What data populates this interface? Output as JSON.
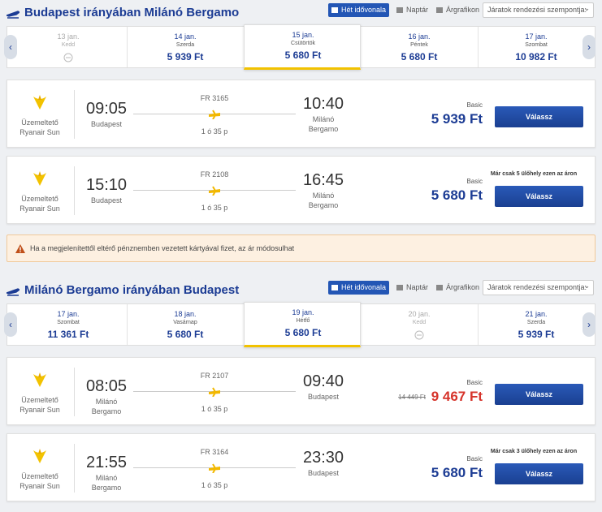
{
  "sections": [
    {
      "title": "Budapest irányában Milánó Bergamo",
      "tabs": [
        "Hét idővonala",
        "Naptár",
        "Árgrafikon"
      ],
      "sort": "Járatok rendezési szempontja:",
      "days": [
        {
          "date": "13 jan.",
          "weekday": "Kedd"
        },
        {
          "date": "14 jan.",
          "weekday": "Szerda",
          "price": "5 939 Ft"
        },
        {
          "date": "15 jan.",
          "weekday": "Csütörtök",
          "price": "5 680 Ft",
          "selected": true
        },
        {
          "date": "16 jan.",
          "weekday": "Péntek",
          "price": "5 680 Ft"
        },
        {
          "date": "17 jan.",
          "weekday": "Szombat",
          "price": "10 982 Ft"
        }
      ],
      "flights": [
        {
          "operator": "Üzemeltető",
          "airline": "Ryanair Sun",
          "dep_time": "09:05",
          "dep_city": "Budapest",
          "flight": "FR 3165",
          "duration": "1 ó 35 p",
          "arr_time": "10:40",
          "arr_city": "Milánó Bergamo",
          "fare": "Basic",
          "price": "5 939 Ft",
          "button": "Válassz"
        },
        {
          "operator": "Üzemeltető",
          "airline": "Ryanair Sun",
          "dep_time": "15:10",
          "dep_city": "Budapest",
          "flight": "FR 2108",
          "duration": "1 ó 35 p",
          "arr_time": "16:45",
          "arr_city": "Milánó Bergamo",
          "fare": "Basic",
          "price": "5 680 Ft",
          "note": "Már csak 5 ülőhely ezen az áron",
          "button": "Válassz"
        }
      ]
    },
    {
      "title": "Milánó Bergamo irányában Budapest",
      "tabs": [
        "Hét idővonala",
        "Naptár",
        "Árgrafikon"
      ],
      "sort": "Járatok rendezési szempontja:",
      "days": [
        {
          "date": "17 jan.",
          "weekday": "Szombat",
          "price": "11 361 Ft"
        },
        {
          "date": "18 jan.",
          "weekday": "Vasárnap",
          "price": "5 680 Ft"
        },
        {
          "date": "19 jan.",
          "weekday": "Hétfő",
          "price": "5 680 Ft",
          "selected": true
        },
        {
          "date": "20 jan.",
          "weekday": "Kedd"
        },
        {
          "date": "21 jan.",
          "weekday": "Szerda",
          "price": "5 939 Ft"
        }
      ],
      "flights": [
        {
          "operator": "Üzemeltető",
          "airline": "Ryanair Sun",
          "dep_time": "08:05",
          "dep_city": "Milánó Bergamo",
          "flight": "FR 2107",
          "duration": "1 ó 35 p",
          "arr_time": "09:40",
          "arr_city": "Budapest",
          "fare": "Basic",
          "old_price": "14 449 Ft",
          "price": "9 467 Ft",
          "button": "Válassz"
        },
        {
          "operator": "Üzemeltető",
          "airline": "Ryanair Sun",
          "dep_time": "21:55",
          "dep_city": "Milánó Bergamo",
          "flight": "FR 3164",
          "duration": "1 ó 35 p",
          "arr_time": "23:30",
          "arr_city": "Budapest",
          "fare": "Basic",
          "price": "5 680 Ft",
          "note": "Már csak 3 ülőhely ezen az áron",
          "button": "Válassz"
        }
      ]
    }
  ],
  "notice": "Ha a megjelenítettől eltérő pénznemben vezetett kártyával fizet, az ár módosulhat"
}
